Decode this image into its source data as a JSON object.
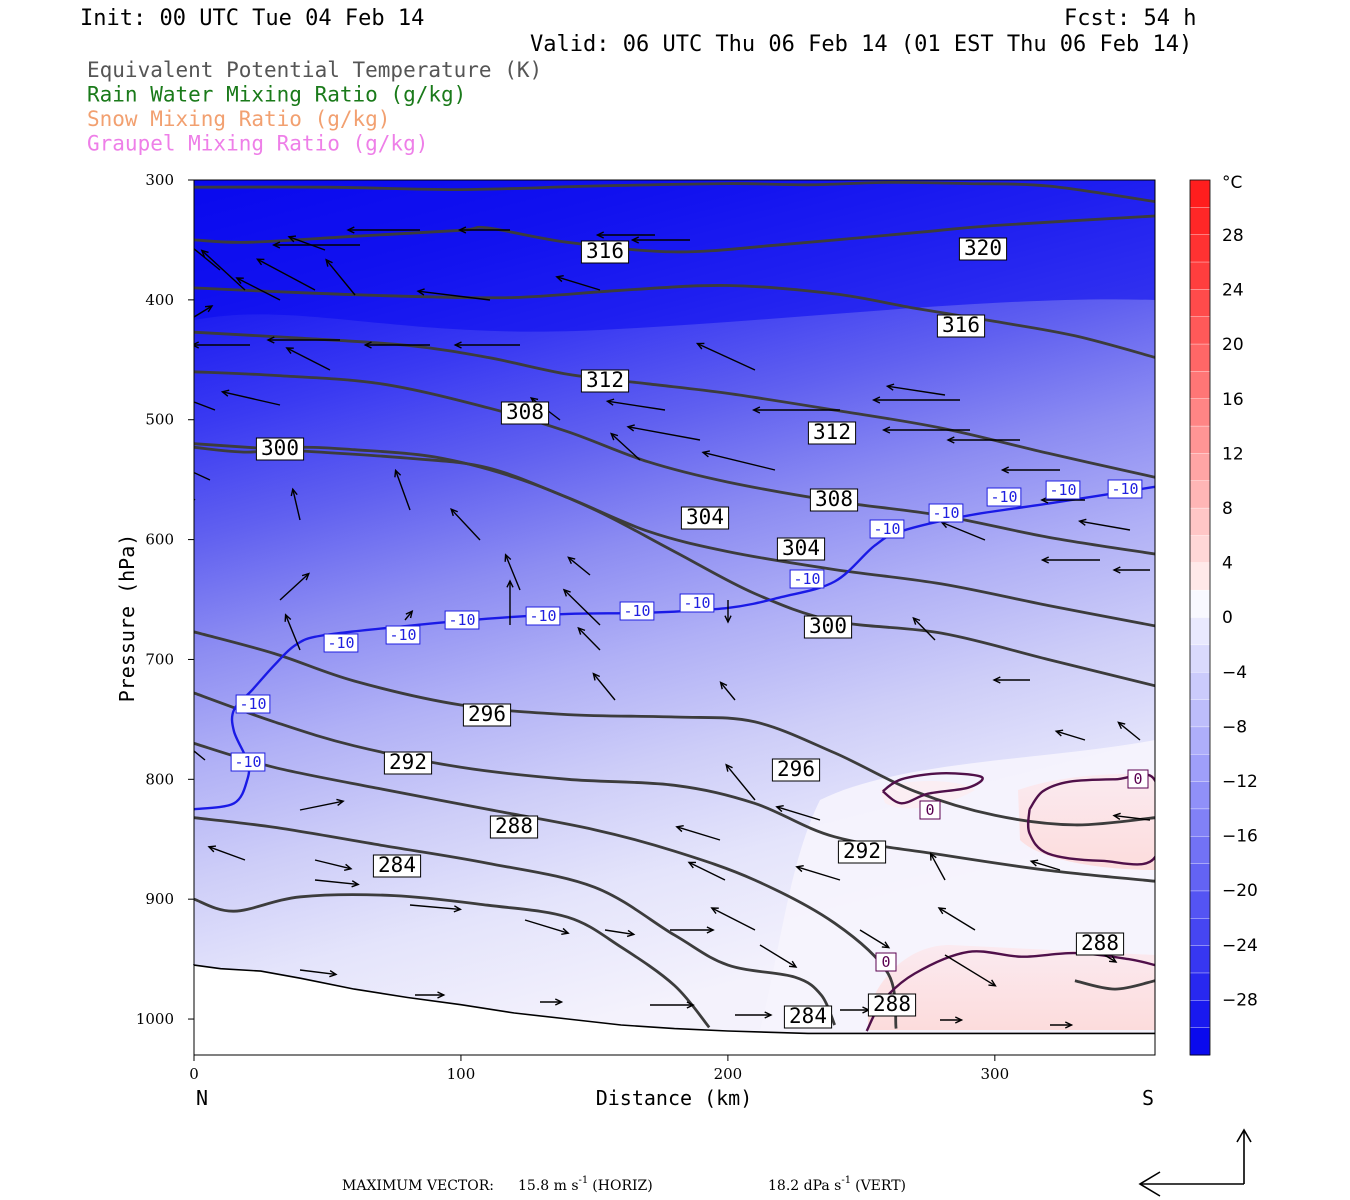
{
  "header": {
    "init": "Init: 00 UTC Tue 04 Feb 14",
    "fcst": "Fcst:   54 h",
    "valid": "Valid: 06 UTC Thu 06 Feb 14 (01 EST Thu 06 Feb 14)"
  },
  "fields": [
    {
      "label": "Equivalent Potential Temperature (K)",
      "color": "#555555"
    },
    {
      "label": "Rain Water Mixing Ratio (g/kg)",
      "color": "#1a7a1a"
    },
    {
      "label": "Snow Mixing Ratio (g/kg)",
      "color": "#f2a070"
    },
    {
      "label": "Graupel Mixing Ratio (g/kg)",
      "color": "#ee7fe8"
    }
  ],
  "chart_data": {
    "type": "cross-section",
    "xlabel": "Distance (km)",
    "ylabel": "Pressure (hPa)",
    "xlim": [
      0,
      360
    ],
    "ylim": [
      1030,
      300
    ],
    "x_ticks": [
      0,
      100,
      200,
      300
    ],
    "y_ticks": [
      300,
      400,
      500,
      600,
      700,
      800,
      900,
      1000
    ],
    "x_end_labels": {
      "left": "N",
      "right": "S"
    },
    "shading": {
      "field": "temperature",
      "units": "°C",
      "colorbar_ticks": [
        28,
        24,
        20,
        16,
        12,
        8,
        4,
        0,
        -4,
        -8,
        -12,
        -16,
        -20,
        -24,
        -28
      ],
      "cold_color": "#0000ee",
      "warm_color": "#ff2020",
      "zero_color": "#ffffff"
    },
    "theta_e_contours": [
      {
        "label": "316",
        "level": 316,
        "points": [
          [
            0,
            350
          ],
          [
            20,
            352
          ],
          [
            60,
            347
          ],
          [
            100,
            342
          ],
          [
            110,
            340
          ],
          [
            140,
            352
          ],
          [
            180,
            360
          ],
          [
            220,
            354
          ],
          [
            270,
            344
          ],
          [
            300,
            338
          ],
          [
            360,
            330
          ]
        ]
      },
      {
        "label": "320",
        "level": 320,
        "points": [
          [
            0,
            306
          ],
          [
            50,
            306
          ],
          [
            100,
            308
          ],
          [
            150,
            305
          ],
          [
            200,
            303
          ],
          [
            230,
            304
          ],
          [
            260,
            302
          ],
          [
            290,
            303
          ],
          [
            320,
            305
          ],
          [
            360,
            318
          ]
        ]
      },
      {
        "label": "316",
        "level": 316,
        "points": [
          [
            0,
            390
          ],
          [
            40,
            394
          ],
          [
            80,
            397
          ],
          [
            120,
            398
          ],
          [
            160,
            392
          ],
          [
            200,
            388
          ],
          [
            240,
            395
          ],
          [
            270,
            407
          ],
          [
            300,
            418
          ],
          [
            330,
            430
          ],
          [
            360,
            448
          ]
        ]
      },
      {
        "label": "312",
        "level": 312,
        "points": [
          [
            0,
            427
          ],
          [
            40,
            432
          ],
          [
            80,
            438
          ],
          [
            110,
            448
          ],
          [
            140,
            462
          ],
          [
            170,
            470
          ],
          [
            200,
            478
          ],
          [
            240,
            492
          ],
          [
            280,
            507
          ],
          [
            320,
            528
          ],
          [
            360,
            548
          ]
        ]
      },
      {
        "label": "308",
        "level": 308,
        "points": [
          [
            0,
            460
          ],
          [
            30,
            463
          ],
          [
            70,
            470
          ],
          [
            110,
            490
          ],
          [
            140,
            510
          ],
          [
            170,
            535
          ],
          [
            200,
            552
          ],
          [
            240,
            568
          ],
          [
            280,
            580
          ],
          [
            320,
            598
          ],
          [
            360,
            612
          ]
        ]
      },
      {
        "label": "304",
        "level": 304,
        "points": [
          [
            0,
            520
          ],
          [
            40,
            526
          ],
          [
            80,
            532
          ],
          [
            110,
            540
          ],
          [
            140,
            565
          ],
          [
            170,
            593
          ],
          [
            200,
            610
          ],
          [
            240,
            625
          ],
          [
            280,
            637
          ],
          [
            320,
            655
          ],
          [
            360,
            672
          ]
        ]
      },
      {
        "label": "300",
        "level": 300,
        "points": [
          [
            0,
            523
          ],
          [
            20,
            527
          ],
          [
            40,
            523
          ],
          [
            60,
            525
          ],
          [
            90,
            531
          ],
          [
            120,
            548
          ],
          [
            150,
            575
          ],
          [
            180,
            610
          ],
          [
            210,
            645
          ],
          [
            240,
            668
          ],
          [
            280,
            678
          ],
          [
            320,
            700
          ],
          [
            360,
            722
          ]
        ]
      },
      {
        "label": "296",
        "level": 296,
        "points": [
          [
            0,
            677
          ],
          [
            30,
            695
          ],
          [
            60,
            718
          ],
          [
            100,
            738
          ],
          [
            140,
            746
          ],
          [
            180,
            748
          ],
          [
            210,
            752
          ],
          [
            240,
            778
          ],
          [
            270,
            810
          ],
          [
            300,
            830
          ],
          [
            330,
            838
          ],
          [
            360,
            832
          ]
        ]
      },
      {
        "label": "292",
        "level": 292,
        "points": [
          [
            0,
            728
          ],
          [
            30,
            752
          ],
          [
            60,
            772
          ],
          [
            100,
            790
          ],
          [
            140,
            800
          ],
          [
            180,
            805
          ],
          [
            210,
            820
          ],
          [
            240,
            848
          ],
          [
            280,
            863
          ],
          [
            320,
            876
          ],
          [
            360,
            885
          ]
        ]
      },
      {
        "label": "288",
        "level": 288,
        "points": [
          [
            0,
            770
          ],
          [
            30,
            790
          ],
          [
            70,
            808
          ],
          [
            110,
            825
          ],
          [
            150,
            842
          ],
          [
            180,
            860
          ],
          [
            210,
            884
          ],
          [
            240,
            920
          ],
          [
            260,
            962
          ],
          [
            263,
            1008
          ]
        ]
      },
      {
        "label": "284",
        "level": 284,
        "points": [
          [
            0,
            832
          ],
          [
            30,
            840
          ],
          [
            70,
            855
          ],
          [
            110,
            870
          ],
          [
            150,
            890
          ],
          [
            180,
            930
          ],
          [
            200,
            955
          ],
          [
            225,
            965
          ],
          [
            235,
            980
          ],
          [
            240,
            1005
          ]
        ]
      },
      {
        "label": "",
        "level": 280,
        "points": [
          [
            0,
            900
          ],
          [
            15,
            910
          ],
          [
            40,
            898
          ],
          [
            75,
            897
          ],
          [
            110,
            905
          ],
          [
            140,
            915
          ],
          [
            160,
            940
          ],
          [
            180,
            972
          ],
          [
            193,
            1007
          ]
        ]
      },
      {
        "label": "288",
        "level": 288,
        "points": [
          [
            330,
            968
          ],
          [
            345,
            975
          ],
          [
            360,
            968
          ]
        ]
      }
    ],
    "minus10_isotherm": {
      "label": "-10",
      "points": [
        [
          0,
          825
        ],
        [
          15,
          820
        ],
        [
          20,
          800
        ],
        [
          20,
          785
        ],
        [
          15,
          760
        ],
        [
          15,
          742
        ],
        [
          22,
          725
        ],
        [
          30,
          705
        ],
        [
          38,
          688
        ],
        [
          48,
          680
        ],
        [
          80,
          672
        ],
        [
          110,
          666
        ],
        [
          140,
          662
        ],
        [
          170,
          661
        ],
        [
          200,
          657
        ],
        [
          220,
          648
        ],
        [
          240,
          635
        ],
        [
          255,
          605
        ],
        [
          265,
          593
        ],
        [
          290,
          580
        ],
        [
          320,
          570
        ],
        [
          360,
          556
        ]
      ]
    },
    "zero_contours": [
      {
        "label": "0",
        "points": [
          [
            258,
            810
          ],
          [
            265,
            800
          ],
          [
            280,
            795
          ],
          [
            295,
            798
          ],
          [
            290,
            807
          ],
          [
            275,
            812
          ],
          [
            265,
            820
          ],
          [
            258,
            810
          ]
        ]
      },
      {
        "label": "0",
        "points": [
          [
            313,
            825
          ],
          [
            318,
            810
          ],
          [
            328,
            802
          ],
          [
            345,
            800
          ],
          [
            360,
            801
          ],
          [
            360,
            865
          ],
          [
            340,
            868
          ],
          [
            320,
            862
          ],
          [
            313,
            845
          ],
          [
            313,
            825
          ]
        ]
      },
      {
        "label": "0",
        "points": [
          [
            252,
            1010
          ],
          [
            258,
            985
          ],
          [
            270,
            962
          ],
          [
            290,
            944
          ],
          [
            310,
            948
          ],
          [
            330,
            945
          ],
          [
            350,
            950
          ],
          [
            360,
            955
          ]
        ]
      }
    ],
    "wind_vectors": [
      [
        93,
        300,
        7,
        -10
      ],
      [
        140,
        350,
        10,
        -10
      ],
      [
        40,
        340,
        -10,
        -8
      ],
      [
        93,
        345,
        -9,
        -6
      ],
      [
        170,
        360,
        -7,
        -6
      ],
      [
        215,
        410,
        -8,
        -5
      ],
      [
        280,
        405,
        -8,
        -3
      ],
      [
        330,
        370,
        -6,
        -5
      ],
      [
        220,
        270,
        -6,
        -8
      ],
      [
        280,
        300,
        -6,
        -5
      ],
      [
        315,
        290,
        -8,
        -7
      ],
      [
        325,
        250,
        -5,
        -3
      ],
      [
        360,
        245,
        -12,
        0
      ],
      [
        420,
        230,
        -10,
        0
      ],
      [
        510,
        230,
        -7,
        0
      ],
      [
        655,
        235,
        -8,
        0
      ],
      [
        690,
        240,
        -8,
        0
      ],
      [
        245,
        290,
        -6,
        -9
      ],
      [
        355,
        295,
        -4,
        -8
      ],
      [
        490,
        300,
        -10,
        -2
      ],
      [
        600,
        290,
        -6,
        -3
      ],
      [
        250,
        345,
        -8,
        0
      ],
      [
        340,
        340,
        -10,
        0
      ],
      [
        430,
        345,
        -9,
        0
      ],
      [
        520,
        345,
        -9,
        0
      ],
      [
        560,
        420,
        -4,
        -5
      ],
      [
        640,
        460,
        -4,
        -6
      ],
      [
        665,
        410,
        -8,
        -2
      ],
      [
        755,
        370,
        -8,
        -6
      ],
      [
        700,
        440,
        -10,
        -3
      ],
      [
        775,
        470,
        -10,
        -4
      ],
      [
        840,
        410,
        -12,
        0
      ],
      [
        945,
        395,
        -8,
        -2
      ],
      [
        960,
        400,
        -12,
        0
      ],
      [
        970,
        430,
        -12,
        0
      ],
      [
        1020,
        440,
        -10,
        0
      ],
      [
        1060,
        470,
        -8,
        0
      ],
      [
        1085,
        500,
        -6,
        0
      ],
      [
        985,
        540,
        -6,
        -4
      ],
      [
        1100,
        560,
        -8,
        0
      ],
      [
        1130,
        530,
        -7,
        -2
      ],
      [
        1150,
        570,
        -5,
        0
      ],
      [
        300,
        520,
        -1,
        -7
      ],
      [
        280,
        600,
        4,
        -6
      ],
      [
        410,
        510,
        -2,
        -9
      ],
      [
        480,
        540,
        -4,
        -7
      ],
      [
        520,
        590,
        -2,
        -8
      ],
      [
        590,
        575,
        -3,
        -4
      ],
      [
        600,
        625,
        -5,
        -8
      ],
      [
        300,
        650,
        -2,
        -8
      ],
      [
        405,
        620,
        1,
        -2
      ],
      [
        510,
        625,
        0,
        -10
      ],
      [
        600,
        650,
        -3,
        -5
      ],
      [
        615,
        700,
        -3,
        -6
      ],
      [
        728,
        600,
        0,
        5
      ],
      [
        735,
        700,
        -2,
        -4
      ],
      [
        755,
        800,
        -4,
        -8
      ],
      [
        720,
        840,
        -6,
        -3
      ],
      [
        725,
        880,
        -5,
        -4
      ],
      [
        755,
        930,
        -6,
        -5
      ],
      [
        820,
        820,
        -6,
        -3
      ],
      [
        840,
        880,
        -6,
        -3
      ],
      [
        935,
        640,
        -3,
        -5
      ],
      [
        945,
        880,
        -2,
        -6
      ],
      [
        975,
        930,
        -5,
        -5
      ],
      [
        1030,
        680,
        -5,
        0
      ],
      [
        1085,
        740,
        -4,
        -2
      ],
      [
        1140,
        740,
        -3,
        -4
      ],
      [
        1150,
        820,
        -5,
        -1
      ],
      [
        1060,
        870,
        -4,
        -2
      ],
      [
        210,
        480,
        -4,
        -3
      ],
      [
        195,
        500,
        -3,
        -4
      ],
      [
        205,
        760,
        -3,
        -4
      ],
      [
        245,
        860,
        -5,
        -3
      ],
      [
        300,
        810,
        6,
        -2
      ],
      [
        315,
        860,
        5,
        2
      ],
      [
        315,
        880,
        6,
        1
      ],
      [
        410,
        905,
        7,
        1
      ],
      [
        525,
        920,
        6,
        3
      ],
      [
        605,
        930,
        4,
        1
      ],
      [
        670,
        930,
        6,
        0
      ],
      [
        760,
        945,
        5,
        5
      ],
      [
        860,
        930,
        4,
        4
      ],
      [
        945,
        955,
        7,
        7
      ],
      [
        1080,
        940,
        5,
        5
      ],
      [
        300,
        970,
        5,
        1
      ],
      [
        415,
        995,
        4,
        0
      ],
      [
        540,
        1002,
        3,
        0
      ],
      [
        650,
        1005,
        6,
        0
      ],
      [
        735,
        1015,
        5,
        0
      ],
      [
        840,
        1010,
        4,
        0
      ],
      [
        940,
        1020,
        3,
        0
      ],
      [
        1050,
        1025,
        3,
        0
      ]
    ]
  },
  "footer": {
    "max_vector_label": "MAXIMUM VECTOR:",
    "horiz_value": "15.8 m s",
    "horiz_exp": "-1",
    "horiz_tag": "(HORIZ)",
    "vert_value": "18.2 dPa s",
    "vert_exp": "-1",
    "vert_tag": "(VERT)"
  }
}
